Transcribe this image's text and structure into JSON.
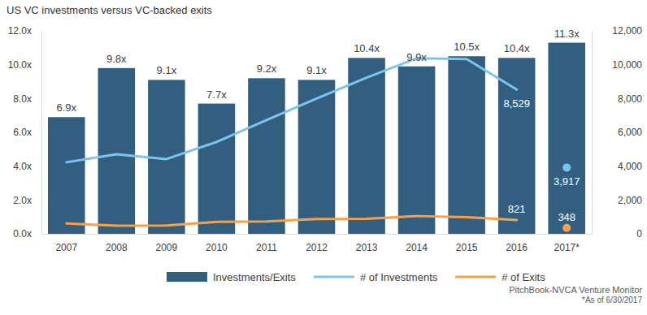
{
  "chart_data": {
    "type": "bar",
    "title": "US VC investments versus VC-backed exits",
    "categories": [
      "2007",
      "2008",
      "2009",
      "2010",
      "2011",
      "2012",
      "2013",
      "2014",
      "2015",
      "2016",
      "2017*"
    ],
    "series": [
      {
        "name": "Investments/Exits",
        "type": "bar",
        "color": "#325f7f",
        "values": [
          6.9,
          9.8,
          9.1,
          7.7,
          9.2,
          9.1,
          10.4,
          9.9,
          10.5,
          10.4,
          11.3
        ],
        "value_labels": [
          "6.9x",
          "9.8x",
          "9.1x",
          "7.7x",
          "9.2x",
          "9.1x",
          "10.4x",
          "9.9x",
          "10.5x",
          "10.4x",
          "11.3x"
        ]
      },
      {
        "name": "# of Investments",
        "type": "line",
        "axis": "y2",
        "color": "#7cc4f0",
        "values": [
          4230,
          4700,
          4420,
          5430,
          6730,
          8000,
          9230,
          10380,
          10330,
          8529,
          3917
        ],
        "value_labels": [
          null,
          null,
          null,
          null,
          null,
          null,
          null,
          null,
          null,
          "8,529",
          "3,917"
        ]
      },
      {
        "name": "# of Exits",
        "type": "line",
        "axis": "y2",
        "color": "#f5a04a",
        "values": [
          610,
          480,
          490,
          705,
          730,
          880,
          890,
          1050,
          985,
          821,
          348
        ],
        "value_labels": [
          null,
          null,
          null,
          null,
          null,
          null,
          null,
          null,
          null,
          "821",
          "348"
        ]
      }
    ],
    "ylim": [
      0,
      12
    ],
    "yticks": [
      {
        "value": 0,
        "label": "0.0x"
      },
      {
        "value": 2,
        "label": "2.0x"
      },
      {
        "value": 4,
        "label": "4.0x"
      },
      {
        "value": 6,
        "label": "6.0x"
      },
      {
        "value": 8,
        "label": "8.0x"
      },
      {
        "value": 10,
        "label": "10.0x"
      },
      {
        "value": 12,
        "label": "12.0x"
      }
    ],
    "y2lim": [
      0,
      12000
    ],
    "y2ticks": [
      0,
      {
        "value": 2000,
        "label": "2,000"
      },
      {
        "value": 4000,
        "label": "4,000"
      },
      {
        "value": 6000,
        "label": "6,000"
      },
      {
        "value": 8000,
        "label": "8,000"
      },
      {
        "value": 10000,
        "label": "10,000"
      },
      {
        "value": 12000,
        "label": "12,000"
      }
    ],
    "grid": false,
    "legend": "bottom",
    "data_labels": true,
    "annotations": [
      "PitchBook-NVCA Venture Monitor",
      "*As of 6/30/2017"
    ]
  }
}
